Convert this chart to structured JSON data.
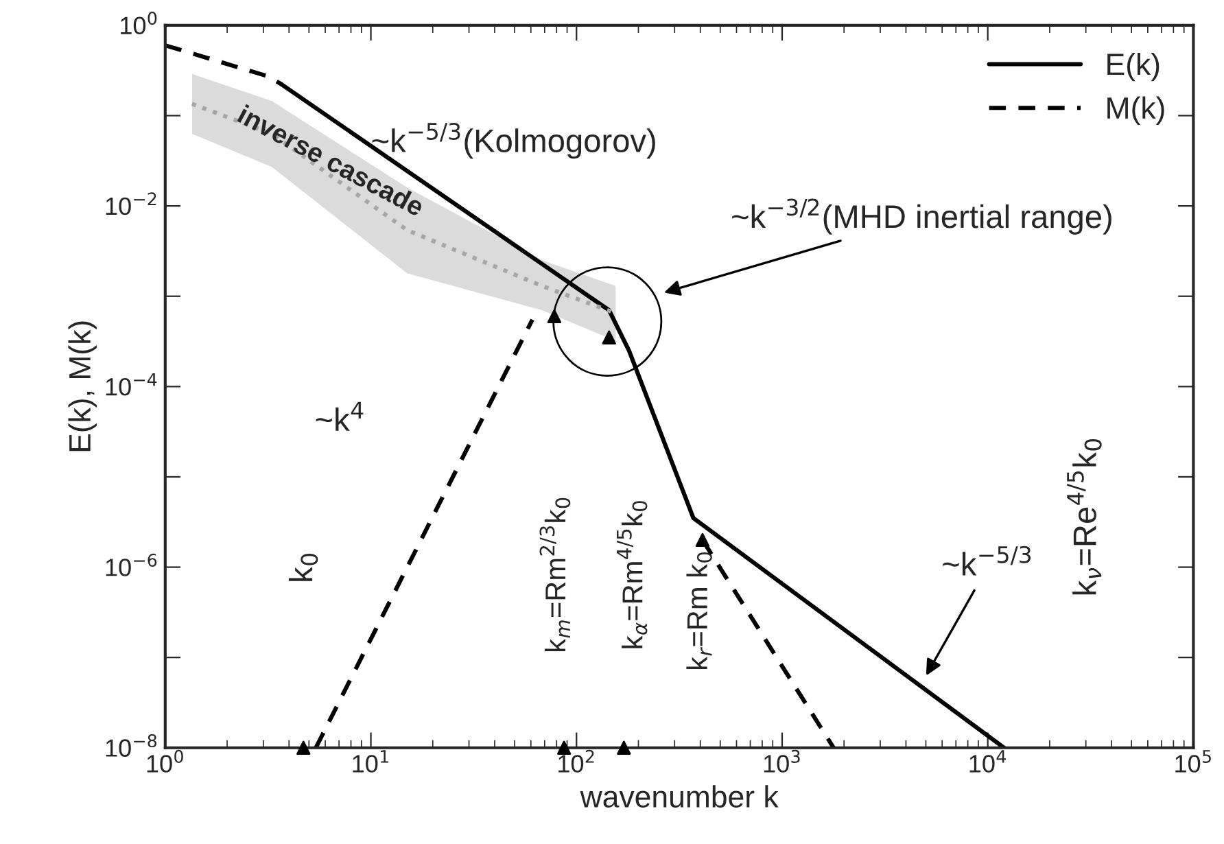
{
  "chart_data": {
    "type": "line",
    "xlabel": "wavenumber k",
    "ylabel": "E(k), M(k)",
    "log": "xy",
    "grid": false,
    "legend": "top right",
    "xlim": [
      1,
      100000
    ],
    "ylim": [
      1e-08,
      1
    ],
    "xticks": [
      {
        "value": 1,
        "label": "10$^{0}$"
      },
      {
        "value": 10,
        "label": "10$^{1}$"
      },
      {
        "value": 100,
        "label": "10$^{2}$"
      },
      {
        "value": 1000,
        "label": "10$^{3}$"
      },
      {
        "value": 10000,
        "label": "10$^{4}$"
      },
      {
        "value": 100000,
        "label": "10$^{5}$"
      }
    ],
    "yticks": [
      {
        "value": 1,
        "label": "10$^{0}$"
      },
      {
        "value": 0.1,
        "label": null
      },
      {
        "value": 0.01,
        "label": "10$^{−2}$"
      },
      {
        "value": 0.001,
        "label": null
      },
      {
        "value": 0.0001,
        "label": "10$^{−4}$"
      },
      {
        "value": 1e-05,
        "label": null
      },
      {
        "value": 1e-06,
        "label": "10$^{−6}$"
      },
      {
        "value": 1e-07,
        "label": null
      },
      {
        "value": 1e-08,
        "label": "10$^{−8}$"
      }
    ],
    "series": [
      {
        "name": "E(k)",
        "color": "#000000",
        "line_style": "solid",
        "x": [
          3.7,
          144,
          180,
          370,
          12000
        ],
        "values": [
          0.22,
          0.0007,
          0.00025,
          3.5e-06,
          1e-08
        ]
      },
      {
        "name": "M(k)",
        "color": "#000000",
        "line_style": "dashed",
        "x": [
          1,
          3.2,
          3.7,
          3.8,
          5.4,
          61,
          62,
          410,
          1780
        ],
        "values": [
          0.6,
          0.27,
          0.22,
          null,
          1e-08,
          0.00055,
          null,
          2e-06,
          1e-08
        ]
      },
      {
        "type": "line",
        "color": "#a6a6a6",
        "line_style": "dotted",
        "x": [
          1.35,
          3.3,
          15,
          68,
          155
        ],
        "values": [
          0.135,
          0.063,
          0.0054,
          0.0013,
          0.00065
        ],
        "upper": [
          0.29,
          0.145,
          0.016,
          0.0025,
          0.0013
        ],
        "lower": [
          0.063,
          0.027,
          0.0018,
          0.0007,
          0.00032
        ]
      },
      {
        "type": "scatter",
        "color": "#000000",
        "marker": "triangle",
        "x": [
          4.7,
          87,
          170,
          78,
          144,
          410
        ],
        "values": [
          1e-08,
          1e-08,
          1e-08,
          0.0006,
          0.00035,
          2e-06
        ]
      }
    ],
    "annotations": [
      "~k$^{−5/3}$(Kolmogorov)",
      "~k$^{−3/2}$(MHD inertial range)",
      "inverse cascade",
      "~k$^{4}$",
      "k$_{0}$",
      "k$_{m}$=Rm$^{2/3}$k$_{0}$",
      "k$_{α}$=Rm$^{4/5}$k$_{0}$",
      "k$_{r}$=Rm k$_{0}$",
      "~k$^{−5/3}$",
      "k$_{ν}$=Re$^{4/5}$k$_{0}$"
    ]
  }
}
